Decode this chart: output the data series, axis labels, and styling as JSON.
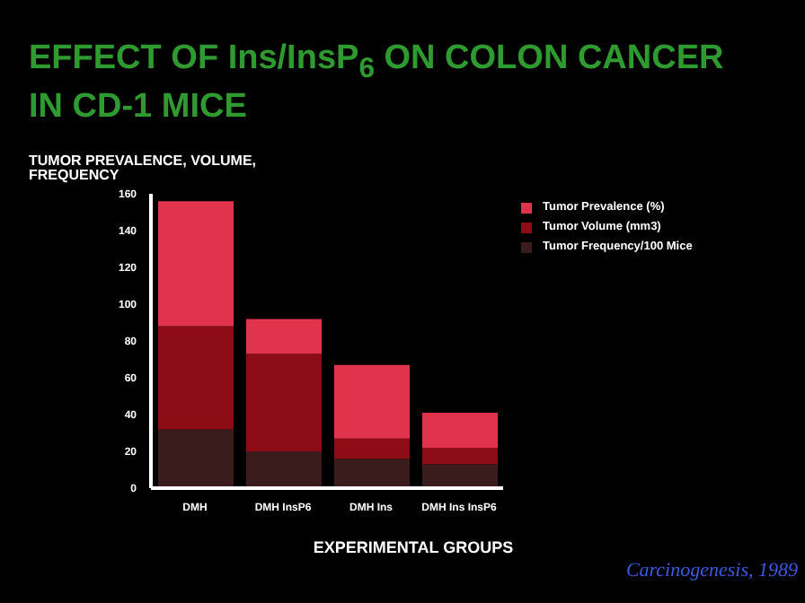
{
  "chart_data": {
    "type": "bar",
    "title": "EFFECT OF Ins/InsP$_{6}$ ON COLON CANCER IN CD-1 MICE",
    "ylabel": "TUMOR PREVALENCE, VOLUME, FREQUENCY",
    "xlabel": "EXPERIMENTAL GROUPS",
    "categories": [
      "DMH",
      "DMH InsP6",
      "DMH Ins",
      "DMH Ins InsP6"
    ],
    "stacked": true,
    "series": [
      {
        "name": "Tumor Frequency/100 Mice",
        "color": "#3a1c1c",
        "values": [
          32,
          20,
          16,
          13
        ]
      },
      {
        "name": "Tumor Volume (mm3)",
        "color": "#8e0c16",
        "values": [
          56,
          53,
          11,
          9
        ]
      },
      {
        "name": "Tumor Prevalence (%)",
        "color": "#e0344c",
        "values": [
          68,
          19,
          40,
          19
        ]
      }
    ],
    "ylim": [
      0,
      160
    ],
    "yticks": [
      0,
      20,
      40,
      60,
      80,
      100,
      120,
      140,
      160
    ],
    "grid": false,
    "legend": "top right",
    "annotations": [
      "Carcinogenesis, 1989"
    ]
  }
}
